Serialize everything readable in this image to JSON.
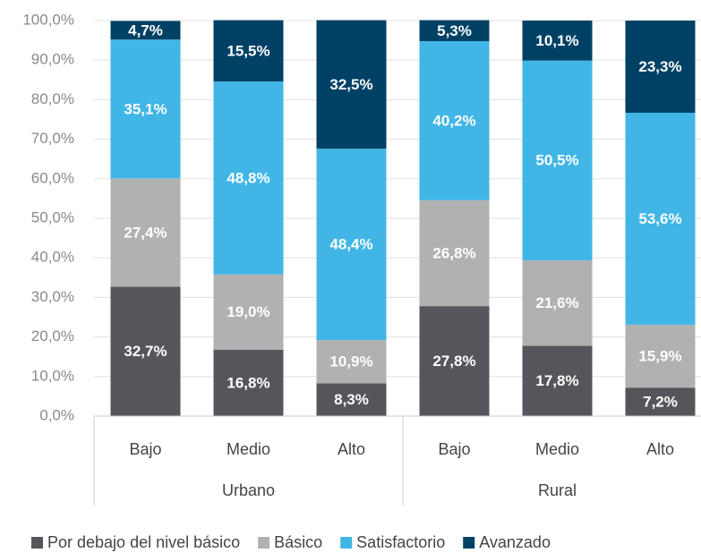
{
  "chart_data": {
    "type": "stacked_bar",
    "categories": [
      "Bajo",
      "Medio",
      "Alto",
      "Bajo",
      "Medio",
      "Alto"
    ],
    "groups": [
      "Urbano",
      "Rural"
    ],
    "series": [
      {
        "name": "Por debajo del nivel básico",
        "color": "#55565b",
        "values": [
          32.7,
          16.8,
          8.3,
          27.8,
          17.8,
          7.2
        ],
        "value_labels": [
          "32,7%",
          "16,8%",
          "8,3%",
          "27,8%",
          "17,8%",
          "7,2%"
        ]
      },
      {
        "name": "Básico",
        "color": "#b1b1b1",
        "values": [
          27.4,
          19.0,
          10.9,
          26.8,
          21.6,
          15.9
        ],
        "value_labels": [
          "27,4%",
          "19,0%",
          "10,9%",
          "26,8%",
          "21,6%",
          "15,9%"
        ]
      },
      {
        "name": "Satisfactorio",
        "color": "#41b6e6",
        "values": [
          35.1,
          48.8,
          48.4,
          40.2,
          50.5,
          53.6
        ],
        "value_labels": [
          "35,1%",
          "48,8%",
          "48,4%",
          "40,2%",
          "50,5%",
          "53,6%"
        ]
      },
      {
        "name": "Avanzado",
        "color": "#004165",
        "values": [
          4.7,
          15.5,
          32.5,
          5.3,
          10.1,
          23.3
        ],
        "value_labels": [
          "4,7%",
          "15,5%",
          "32,5%",
          "5,3%",
          "10,1%",
          "23,3%"
        ]
      }
    ],
    "ylim": [
      0,
      100
    ],
    "yticks": [
      {
        "value": 0,
        "label": "0,0%"
      },
      {
        "value": 10,
        "label": "10,0%"
      },
      {
        "value": 20,
        "label": "20,0%"
      },
      {
        "value": 30,
        "label": "30,0%"
      },
      {
        "value": 40,
        "label": "40,0%"
      },
      {
        "value": 50,
        "label": "50,0%"
      },
      {
        "value": 60,
        "label": "60,0%"
      },
      {
        "value": 70,
        "label": "70,0%"
      },
      {
        "value": 80,
        "label": "80,0%"
      },
      {
        "value": 90,
        "label": "90,0%"
      },
      {
        "value": 100,
        "label": "100,0%"
      }
    ],
    "grid": true,
    "legend": "bottom"
  }
}
